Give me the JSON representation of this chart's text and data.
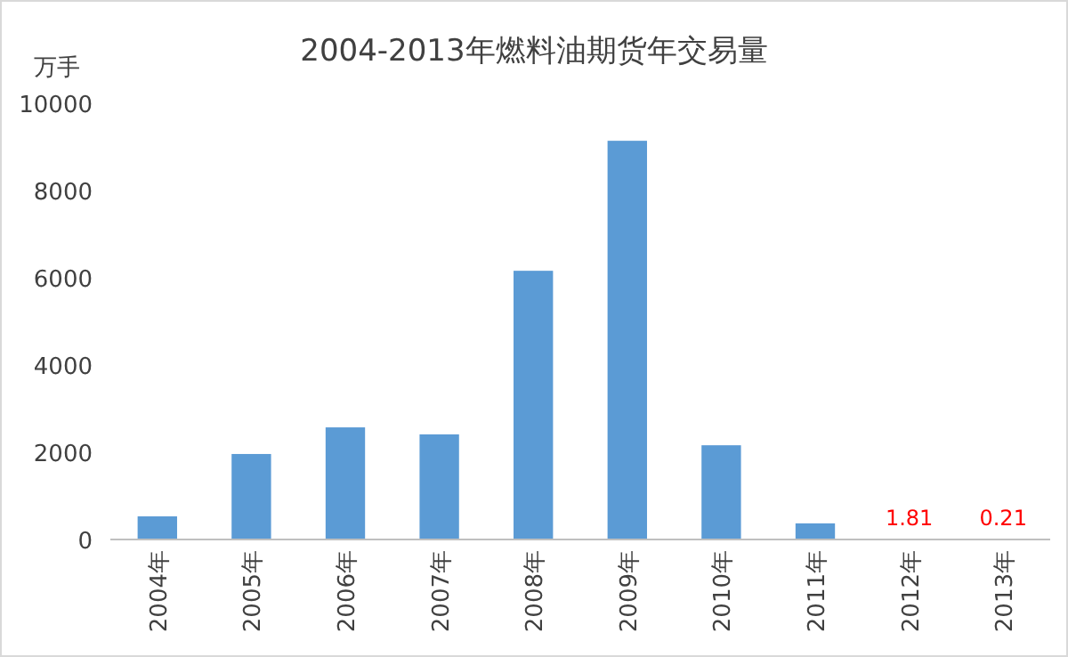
{
  "chart_data": {
    "type": "bar",
    "title": "2004-2013年燃料油期货年交易量",
    "ylabel": "万手",
    "categories": [
      "2004年",
      "2005年",
      "2006年",
      "2007年",
      "2008年",
      "2009年",
      "2010年",
      "2011年",
      "2012年",
      "2013年"
    ],
    "values": [
      530,
      1960,
      2570,
      2410,
      6160,
      9140,
      2160,
      370,
      1.81,
      0.21
    ],
    "value_labels": [
      null,
      null,
      null,
      null,
      null,
      null,
      null,
      null,
      "1.81",
      "0.21"
    ],
    "color": "#5b9bd5",
    "ylim": [
      0,
      10000
    ],
    "yticks": [
      0,
      2000,
      4000,
      6000,
      8000,
      10000
    ]
  }
}
